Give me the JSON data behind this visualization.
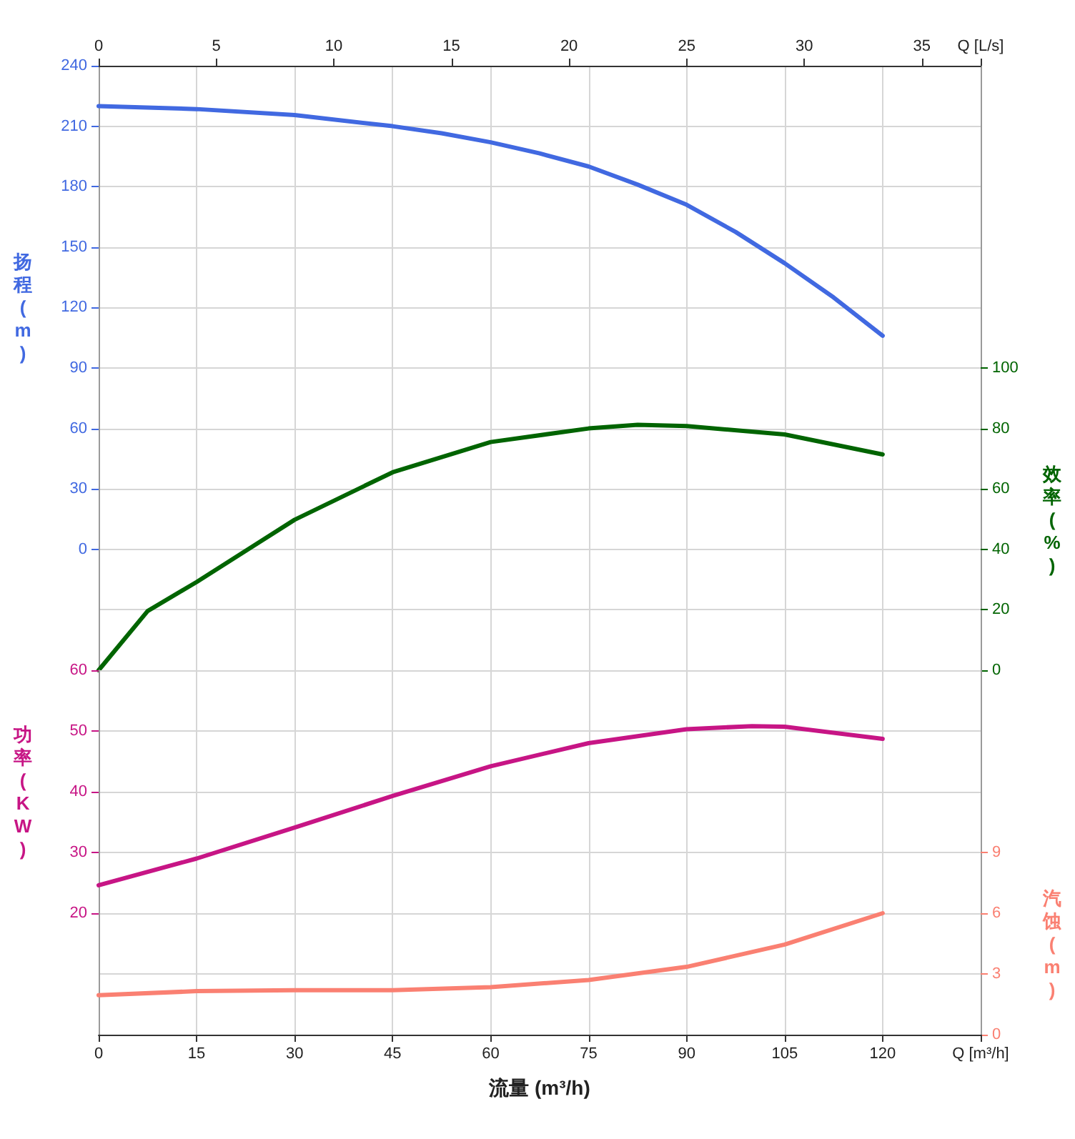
{
  "chart_data": [
    {
      "type": "line",
      "xlim": [
        0,
        135
      ],
      "xticks": [
        0,
        15,
        30,
        45,
        60,
        75,
        90,
        105,
        120
      ],
      "x2lim": [
        0,
        37.5
      ],
      "x2ticks": [
        0,
        5,
        10,
        15,
        20,
        25,
        30,
        35,
        {
          "value": 37.5,
          "label": "Q [L/s]"
        }
      ],
      "tick_labels": "y",
      "ylabel": "扬程 (m)",
      "ylim": [
        -60,
        240
      ],
      "yticks": [
        0,
        30,
        60,
        90,
        120,
        150,
        180,
        210,
        240
      ],
      "y2label": "效率 (%)",
      "y2lim": [
        0,
        200
      ],
      "y2ticks": [
        0,
        20,
        40,
        60,
        80,
        100
      ],
      "grid": true,
      "marker": "none",
      "line_style": "solid",
      "series": [
        {
          "color": "#4169e1",
          "x": [
            0,
            15,
            30,
            45,
            52.5,
            60,
            67.5,
            75,
            82.5,
            90,
            97.5,
            105,
            112.5,
            120
          ],
          "values": [
            220,
            218.5,
            215.5,
            210,
            206.5,
            202,
            196.5,
            190,
            181,
            171,
            157.5,
            142,
            125,
            106
          ]
        },
        {
          "axis": "y2",
          "color": "#006400",
          "x": [
            0,
            7.5,
            15,
            30,
            45,
            60,
            75,
            82.5,
            90,
            105,
            120
          ],
          "values": [
            0,
            19.6,
            29.2,
            49.8,
            65.5,
            75.5,
            80,
            81.2,
            80.8,
            78,
            71.4
          ]
        }
      ]
    },
    {
      "type": "line",
      "xlabel": "流量 (m³/h)",
      "xlim": [
        0,
        135
      ],
      "xticks": [
        0,
        15,
        30,
        45,
        60,
        75,
        90,
        105,
        120,
        {
          "value": 135,
          "label": "Q [m³/h]"
        }
      ],
      "ylabel": "功率 (KW)",
      "ylim": [
        0,
        60
      ],
      "yticks": [
        20,
        30,
        40,
        50,
        60
      ],
      "y2label": "汽蚀 (m)",
      "y2lim": [
        0,
        18
      ],
      "y2ticks": [
        0,
        3,
        6,
        9
      ],
      "grid": true,
      "marker": "none",
      "line_style": "solid",
      "series": [
        {
          "color": "#c71585",
          "x": [
            0,
            15,
            30,
            45,
            60,
            75,
            90,
            100,
            105,
            120
          ],
          "values": [
            24.6,
            29,
            34.1,
            39.3,
            44.2,
            48,
            50.3,
            50.8,
            50.7,
            48.7
          ]
        },
        {
          "axis": "y2",
          "color": "#fa8072",
          "x": [
            0,
            15,
            30,
            45,
            60,
            75,
            90,
            105,
            120
          ],
          "values": [
            1.95,
            2.15,
            2.2,
            2.2,
            2.35,
            2.7,
            3.35,
            4.45,
            6
          ]
        }
      ]
    }
  ]
}
